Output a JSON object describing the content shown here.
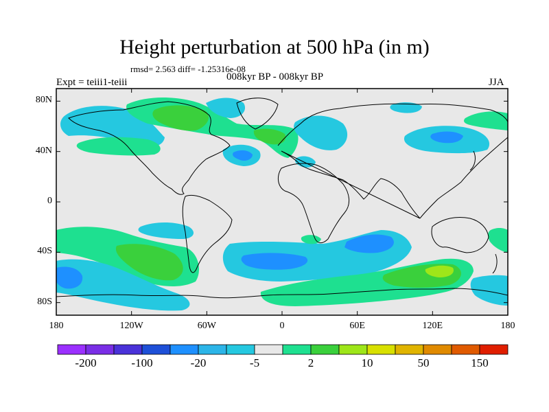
{
  "title": "Height perturbation at 500 hPa (in m)",
  "stats": "rmsd= 2.563 diff= -1.25316e-08",
  "period": "008kyr BP - 008kyr BP",
  "expt": "Expt = teiii1-teiii",
  "season": "JJA",
  "lat_labels": [
    "80N",
    "40N",
    "0",
    "40S",
    "80S"
  ],
  "lat_values": [
    80,
    40,
    0,
    -40,
    -80
  ],
  "lon_labels": [
    "180",
    "120W",
    "60W",
    "0",
    "60E",
    "120E",
    "180"
  ],
  "lon_values": [
    -180,
    -120,
    -60,
    0,
    60,
    120,
    180
  ],
  "colorbar": {
    "colors": [
      "#9b30ff",
      "#7a2ee6",
      "#4a32d9",
      "#1e50d8",
      "#1e90ff",
      "#2cb5e8",
      "#25c8e0",
      "#e8e8e8",
      "#1ee090",
      "#3ad03c",
      "#9ee619",
      "#d8e000",
      "#e0b400",
      "#e08a00",
      "#e05a00",
      "#e01e00"
    ],
    "labels": [
      "-200",
      "-100",
      "-20",
      "-5",
      "2",
      "10",
      "50",
      "150"
    ]
  },
  "colors": {
    "land_bg": "#e8e8e8",
    "cyan": "#25c8e0",
    "blue": "#1e90ff",
    "green": "#1ee090",
    "green_dark": "#3ad03c",
    "yellow_green": "#9ee619"
  }
}
